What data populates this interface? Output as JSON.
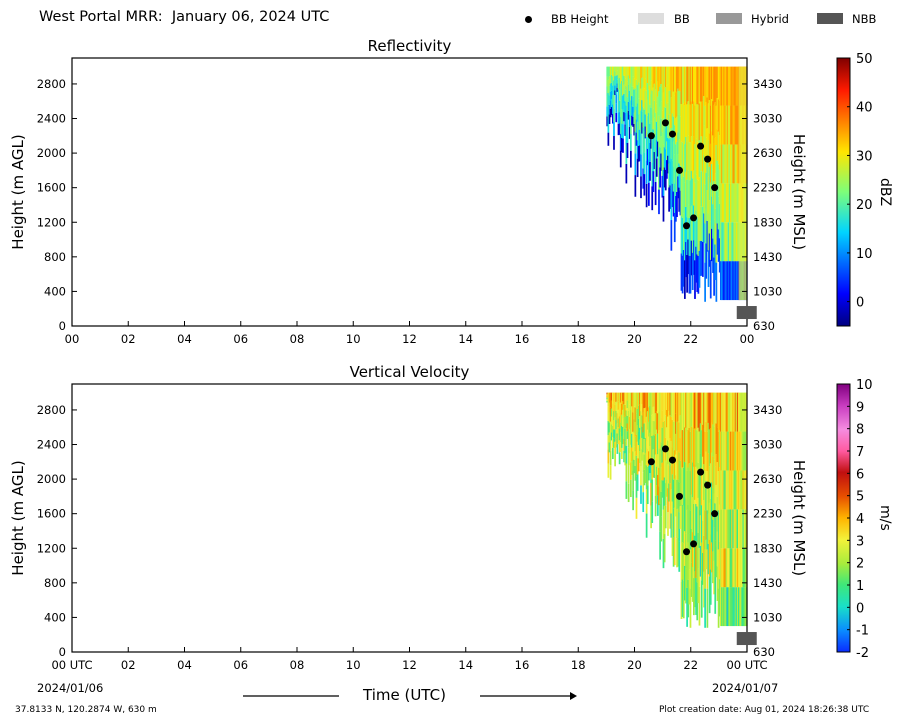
{
  "header": {
    "title": "West Portal MRR:  January 06, 2024 UTC",
    "legend": [
      {
        "label": "BB Height",
        "kind": "dot",
        "color": "#000000"
      },
      {
        "label": "BB",
        "kind": "box",
        "color": "#dddddd"
      },
      {
        "label": "Hybrid",
        "kind": "box",
        "color": "#999999"
      },
      {
        "label": "NBB",
        "kind": "box",
        "color": "#555555"
      }
    ]
  },
  "footer": {
    "location": "37.8133 N, 120.2874 W, 630 m",
    "creation_date": "Plot creation date: Aug 01, 2024 18:26:38 UTC",
    "xlabel": "Time (UTC)",
    "start_date": "2024/01/06",
    "end_date": "2024/01/07"
  },
  "chart_data": [
    {
      "type": "heatmap",
      "title": "Reflectivity",
      "ylabel": "Height (m AGL)",
      "ylabel_right": "Height (m MSL)",
      "colorbar_label": "dBZ",
      "colorbar_range": [
        -5,
        50
      ],
      "colorbar_ticks": [
        "0",
        "10",
        "20",
        "30",
        "40",
        "50"
      ],
      "colorbar_tick_values": [
        0,
        10,
        20,
        30,
        40,
        50
      ],
      "colormap": "jet",
      "x_range_hours": [
        0,
        24
      ],
      "x_ticks": [
        "00",
        "02",
        "04",
        "06",
        "08",
        "10",
        "12",
        "14",
        "16",
        "18",
        "20",
        "22",
        "00"
      ],
      "ylim": [
        0,
        3100
      ],
      "y_ticks": [
        0,
        400,
        800,
        1200,
        1600,
        2000,
        2400,
        2800
      ],
      "y_ticks_right": [
        630,
        1030,
        1430,
        1830,
        2230,
        2630,
        3030,
        3430
      ],
      "data_time_range_hours": [
        19.0,
        24.0
      ],
      "data_top_m": 3000,
      "bb_height_points": [
        {
          "t": 20.6,
          "h": 2200
        },
        {
          "t": 21.1,
          "h": 2350
        },
        {
          "t": 21.35,
          "h": 2220
        },
        {
          "t": 21.6,
          "h": 1800
        },
        {
          "t": 21.85,
          "h": 1160
        },
        {
          "t": 22.1,
          "h": 1250
        },
        {
          "t": 22.35,
          "h": 2080
        },
        {
          "t": 22.6,
          "h": 1930
        },
        {
          "t": 22.85,
          "h": 1600
        }
      ],
      "bb_type_points": [
        {
          "t": 23.6,
          "type": "NBB",
          "h": 150
        }
      ]
    },
    {
      "type": "heatmap",
      "title": "Vertical Velocity",
      "ylabel": "Height (m AGL)",
      "ylabel_right": "Height (m MSL)",
      "colorbar_label": "m/s",
      "colorbar_range": [
        -2,
        10
      ],
      "colorbar_ticks": [
        "-2",
        "-1",
        "0",
        "1",
        "2",
        "3",
        "4",
        "5",
        "6",
        "7",
        "8",
        "9",
        "10"
      ],
      "colorbar_tick_values": [
        -2,
        -1,
        0,
        1,
        2,
        3,
        4,
        5,
        6,
        7,
        8,
        9,
        10
      ],
      "x_range_hours": [
        0,
        24
      ],
      "x_ticks": [
        "00 UTC",
        "02",
        "04",
        "06",
        "08",
        "10",
        "12",
        "14",
        "16",
        "18",
        "20",
        "22",
        "00 UTC"
      ],
      "ylim": [
        0,
        3100
      ],
      "y_ticks": [
        0,
        400,
        800,
        1200,
        1600,
        2000,
        2400,
        2800
      ],
      "y_ticks_right": [
        630,
        1030,
        1430,
        1830,
        2230,
        2630,
        3030,
        3430
      ],
      "data_time_range_hours": [
        19.0,
        24.0
      ],
      "data_top_m": 3000,
      "bb_height_points": [
        {
          "t": 20.6,
          "h": 2200
        },
        {
          "t": 21.1,
          "h": 2350
        },
        {
          "t": 21.35,
          "h": 2220
        },
        {
          "t": 21.6,
          "h": 1800
        },
        {
          "t": 21.85,
          "h": 1160
        },
        {
          "t": 22.1,
          "h": 1250
        },
        {
          "t": 22.35,
          "h": 2080
        },
        {
          "t": 22.6,
          "h": 1930
        },
        {
          "t": 22.85,
          "h": 1600
        }
      ],
      "bb_type_points": [
        {
          "t": 23.6,
          "type": "NBB",
          "h": 150
        }
      ]
    }
  ]
}
